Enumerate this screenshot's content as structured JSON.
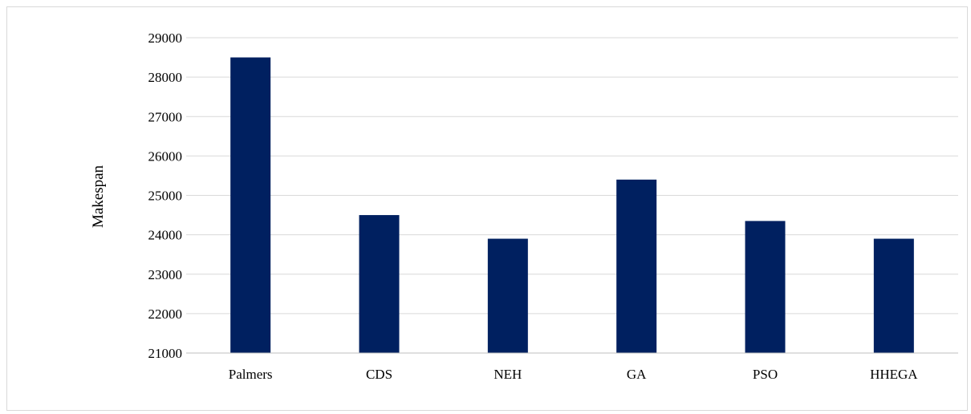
{
  "chart_data": {
    "type": "bar",
    "categories": [
      "Palmers",
      "CDS",
      "NEH",
      "GA",
      "PSO",
      "HHEGA"
    ],
    "values": [
      28500,
      24500,
      23900,
      25400,
      24350,
      23900
    ],
    "title": "",
    "xlabel": "",
    "ylabel": "Makespan",
    "ylim": [
      21000,
      29000
    ],
    "yticks": [
      21000,
      22000,
      23000,
      24000,
      25000,
      26000,
      27000,
      28000,
      29000
    ],
    "grid": true,
    "legend": "none",
    "colors": {
      "bar": "#002060",
      "grid": "#d9d9d9",
      "axis": "#bfbfbf"
    }
  }
}
